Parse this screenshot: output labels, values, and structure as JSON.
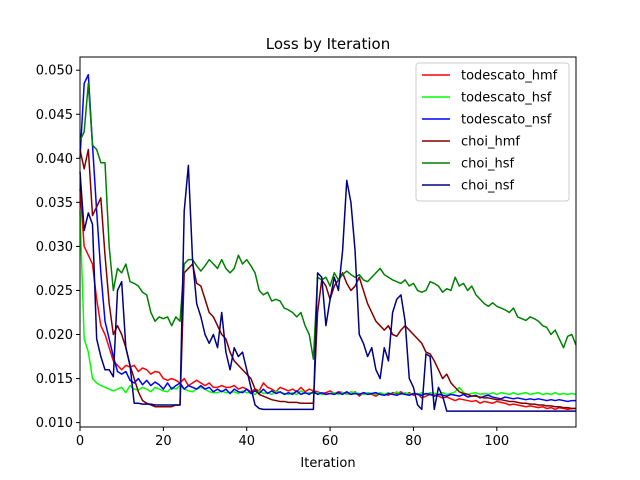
{
  "chart_data": {
    "type": "line",
    "title": "Loss by Iteration",
    "xlabel": "Iteration",
    "ylabel": "",
    "xlim": [
      0,
      119
    ],
    "ylim": [
      0.0095,
      0.0515
    ],
    "xticks": [
      0,
      20,
      40,
      60,
      80,
      100
    ],
    "xtick_labels": [
      "0",
      "20",
      "40",
      "60",
      "80",
      "100"
    ],
    "yticks": [
      0.01,
      0.015,
      0.02,
      0.025,
      0.03,
      0.035,
      0.04,
      0.045,
      0.05
    ],
    "ytick_labels": [
      "0.010",
      "0.015",
      "0.020",
      "0.025",
      "0.030",
      "0.035",
      "0.040",
      "0.045",
      "0.050"
    ],
    "grid": false,
    "legend_position": "top-right",
    "x_start": 0,
    "x_step": 1,
    "series": [
      {
        "name": "todescato_hmf",
        "color": "#ff0000",
        "values": [
          0.0365,
          0.03,
          0.029,
          0.028,
          0.024,
          0.021,
          0.02,
          0.0185,
          0.017,
          0.0165,
          0.016,
          0.0165,
          0.0163,
          0.0165,
          0.0158,
          0.0162,
          0.016,
          0.0155,
          0.0158,
          0.0157,
          0.015,
          0.0148,
          0.015,
          0.0148,
          0.0145,
          0.015,
          0.0142,
          0.0145,
          0.0148,
          0.0145,
          0.0142,
          0.0145,
          0.014,
          0.014,
          0.0142,
          0.014,
          0.014,
          0.0142,
          0.0138,
          0.014,
          0.0138,
          0.0135,
          0.0138,
          0.0136,
          0.0145,
          0.014,
          0.0138,
          0.0135,
          0.014,
          0.0138,
          0.0136,
          0.0138,
          0.0135,
          0.014,
          0.0135,
          0.0138,
          0.0136,
          0.0135,
          0.0133,
          0.0134,
          0.0136,
          0.0133,
          0.0135,
          0.0134,
          0.0133,
          0.0132,
          0.0135,
          0.013,
          0.0134,
          0.0133,
          0.0132,
          0.013,
          0.0133,
          0.0132,
          0.0131,
          0.0134,
          0.0133,
          0.0135,
          0.0132,
          0.0134,
          0.0131,
          0.0133,
          0.0128,
          0.013,
          0.0132,
          0.0131,
          0.013,
          0.0128,
          0.0129,
          0.0127,
          0.0125,
          0.0127,
          0.0126,
          0.0125,
          0.0124,
          0.0125,
          0.0122,
          0.0124,
          0.0123,
          0.0122,
          0.0124,
          0.0123,
          0.0122,
          0.012,
          0.0121,
          0.012,
          0.0119,
          0.0118,
          0.0119,
          0.0118,
          0.0117,
          0.0118,
          0.0116,
          0.0117,
          0.0115,
          0.0117,
          0.0116,
          0.0115,
          0.0116,
          0.0116
        ]
      },
      {
        "name": "todescato_hsf",
        "color": "#00ff00",
        "values": [
          0.034,
          0.0195,
          0.018,
          0.015,
          0.0145,
          0.0142,
          0.014,
          0.0138,
          0.0136,
          0.0138,
          0.014,
          0.0134,
          0.0142,
          0.0138,
          0.0137,
          0.014,
          0.0138,
          0.0135,
          0.014,
          0.0138,
          0.0136,
          0.0135,
          0.014,
          0.0138,
          0.0142,
          0.0138,
          0.0136,
          0.0135,
          0.0138,
          0.014,
          0.0138,
          0.0135,
          0.0134,
          0.0134,
          0.0136,
          0.0134,
          0.0134,
          0.0135,
          0.0133,
          0.0136,
          0.0134,
          0.0134,
          0.0132,
          0.0136,
          0.0133,
          0.0134,
          0.0132,
          0.0136,
          0.0134,
          0.0133,
          0.0132,
          0.0134,
          0.0132,
          0.0136,
          0.0133,
          0.0134,
          0.0133,
          0.0134,
          0.0132,
          0.0132,
          0.0133,
          0.0134,
          0.0132,
          0.0134,
          0.0132,
          0.0135,
          0.0134,
          0.0133,
          0.0132,
          0.0134,
          0.0133,
          0.0132,
          0.0134,
          0.0132,
          0.0134,
          0.0132,
          0.0135,
          0.0132,
          0.0134,
          0.0132,
          0.0133,
          0.0132,
          0.0134,
          0.0132,
          0.0134,
          0.0133,
          0.0132,
          0.0134,
          0.0132,
          0.0133,
          0.0135,
          0.014,
          0.0134,
          0.0132,
          0.0133,
          0.0134,
          0.0132,
          0.0133,
          0.0132,
          0.0134,
          0.0132,
          0.0134,
          0.0133,
          0.0132,
          0.0134,
          0.0132,
          0.0133,
          0.0134,
          0.0132,
          0.0133,
          0.0134,
          0.0132,
          0.0133,
          0.0132,
          0.0134,
          0.0132,
          0.0133,
          0.0132,
          0.0133,
          0.0132
        ]
      },
      {
        "name": "todescato_nsf",
        "color": "#0000ff",
        "values": [
          0.04,
          0.0485,
          0.0495,
          0.0415,
          0.034,
          0.027,
          0.0215,
          0.0195,
          0.0175,
          0.0158,
          0.0155,
          0.0158,
          0.0148,
          0.0145,
          0.015,
          0.0143,
          0.0148,
          0.0142,
          0.0146,
          0.0143,
          0.0138,
          0.0145,
          0.0138,
          0.0142,
          0.0145,
          0.0138,
          0.0142,
          0.014,
          0.0138,
          0.0142,
          0.0138,
          0.014,
          0.0135,
          0.0138,
          0.0135,
          0.0138,
          0.0133,
          0.0138,
          0.0135,
          0.0134,
          0.0138,
          0.0133,
          0.0136,
          0.0133,
          0.0138,
          0.0133,
          0.0136,
          0.0133,
          0.0135,
          0.0132,
          0.0134,
          0.0132,
          0.0136,
          0.0132,
          0.0134,
          0.0132,
          0.0135,
          0.0132,
          0.0134,
          0.0132,
          0.0133,
          0.0132,
          0.0134,
          0.0132,
          0.0135,
          0.0132,
          0.0133,
          0.0132,
          0.0134,
          0.0132,
          0.0133,
          0.0134,
          0.0132,
          0.0131,
          0.0133,
          0.0132,
          0.0131,
          0.0133,
          0.0132,
          0.0131,
          0.0133,
          0.0132,
          0.0131,
          0.0133,
          0.0132,
          0.013,
          0.0132,
          0.0131,
          0.013,
          0.0132,
          0.0131,
          0.013,
          0.0132,
          0.0129,
          0.013,
          0.0131,
          0.0128,
          0.013,
          0.0131,
          0.0129,
          0.0128,
          0.0127,
          0.0129,
          0.0128,
          0.0127,
          0.0128,
          0.0127,
          0.0126,
          0.0127,
          0.0126,
          0.0127,
          0.0126,
          0.0125,
          0.0126,
          0.0125,
          0.0126,
          0.0125,
          0.0124,
          0.0125,
          0.0125
        ]
      },
      {
        "name": "choi_hmf",
        "color": "#800000",
        "values": [
          0.041,
          0.0388,
          0.041,
          0.0335,
          0.0345,
          0.0355,
          0.029,
          0.0235,
          0.02,
          0.021,
          0.02,
          0.0185,
          0.0165,
          0.015,
          0.0135,
          0.0125,
          0.0122,
          0.012,
          0.0118,
          0.0118,
          0.0118,
          0.0118,
          0.0118,
          0.012,
          0.012,
          0.027,
          0.0275,
          0.028,
          0.0258,
          0.0255,
          0.024,
          0.0225,
          0.022,
          0.021,
          0.02,
          0.0195,
          0.018,
          0.017,
          0.0165,
          0.016,
          0.0155,
          0.015,
          0.0138,
          0.0132,
          0.013,
          0.0128,
          0.0126,
          0.0125,
          0.0124,
          0.0124,
          0.0123,
          0.0123,
          0.0123,
          0.0122,
          0.0122,
          0.0122,
          0.0122,
          0.0225,
          0.0262,
          0.0255,
          0.024,
          0.0255,
          0.0262,
          0.027,
          0.0258,
          0.025,
          0.0255,
          0.0265,
          0.025,
          0.0235,
          0.0225,
          0.0215,
          0.021,
          0.0205,
          0.021,
          0.02,
          0.0198,
          0.0205,
          0.021,
          0.0205,
          0.02,
          0.0195,
          0.019,
          0.018,
          0.0178,
          0.017,
          0.016,
          0.015,
          0.0155,
          0.0145,
          0.014,
          0.0135,
          0.0133,
          0.0132,
          0.013,
          0.013,
          0.0129,
          0.0128,
          0.0128,
          0.0127,
          0.0126,
          0.0126,
          0.0125,
          0.0124,
          0.0124,
          0.0123,
          0.0122,
          0.0122,
          0.0121,
          0.0121,
          0.012,
          0.012,
          0.0119,
          0.0119,
          0.0118,
          0.0118,
          0.0117,
          0.0117,
          0.0116,
          0.0116
        ]
      },
      {
        "name": "choi_hsf",
        "color": "#008000",
        "values": [
          0.042,
          0.043,
          0.0485,
          0.0415,
          0.041,
          0.0395,
          0.0395,
          0.03,
          0.025,
          0.0275,
          0.027,
          0.028,
          0.026,
          0.0258,
          0.0255,
          0.0248,
          0.0245,
          0.0225,
          0.0215,
          0.022,
          0.0218,
          0.022,
          0.021,
          0.022,
          0.0215,
          0.028,
          0.0285,
          0.0285,
          0.0278,
          0.0272,
          0.0278,
          0.0285,
          0.028,
          0.0275,
          0.0285,
          0.0275,
          0.027,
          0.0275,
          0.029,
          0.028,
          0.0285,
          0.0278,
          0.027,
          0.025,
          0.0245,
          0.0248,
          0.0238,
          0.024,
          0.0238,
          0.023,
          0.0228,
          0.0225,
          0.022,
          0.0225,
          0.021,
          0.02,
          0.0172,
          0.0265,
          0.0262,
          0.0265,
          0.0255,
          0.027,
          0.0262,
          0.0268,
          0.0272,
          0.0268,
          0.0265,
          0.0268,
          0.0262,
          0.026,
          0.0265,
          0.027,
          0.0275,
          0.0268,
          0.0265,
          0.0262,
          0.026,
          0.0258,
          0.0262,
          0.0255,
          0.0258,
          0.025,
          0.0248,
          0.025,
          0.026,
          0.0258,
          0.0255,
          0.0248,
          0.0252,
          0.025,
          0.0265,
          0.0255,
          0.0258,
          0.025,
          0.0255,
          0.0245,
          0.024,
          0.0235,
          0.0232,
          0.0236,
          0.0232,
          0.023,
          0.0228,
          0.0225,
          0.023,
          0.022,
          0.0218,
          0.0216,
          0.022,
          0.0218,
          0.0215,
          0.021,
          0.0208,
          0.02,
          0.0205,
          0.0195,
          0.0185,
          0.0198,
          0.02,
          0.0188
        ]
      },
      {
        "name": "choi_nsf",
        "color": "#000080",
        "values": [
          0.0385,
          0.0318,
          0.0338,
          0.0325,
          0.0195,
          0.0175,
          0.016,
          0.016,
          0.0152,
          0.025,
          0.026,
          0.0185,
          0.0165,
          0.0122,
          0.0122,
          0.0121,
          0.0121,
          0.0121,
          0.012,
          0.012,
          0.012,
          0.012,
          0.012,
          0.012,
          0.012,
          0.034,
          0.0392,
          0.0285,
          0.0235,
          0.022,
          0.02,
          0.019,
          0.02,
          0.0185,
          0.0225,
          0.018,
          0.016,
          0.0185,
          0.0175,
          0.018,
          0.016,
          0.014,
          0.012,
          0.0116,
          0.0115,
          0.0115,
          0.0115,
          0.0115,
          0.0115,
          0.0115,
          0.0115,
          0.0115,
          0.0115,
          0.0115,
          0.0115,
          0.0115,
          0.0115,
          0.027,
          0.0265,
          0.021,
          0.024,
          0.0265,
          0.025,
          0.0295,
          0.0375,
          0.035,
          0.0295,
          0.02,
          0.019,
          0.0175,
          0.0185,
          0.016,
          0.015,
          0.0185,
          0.017,
          0.0225,
          0.024,
          0.0245,
          0.0215,
          0.015,
          0.014,
          0.012,
          0.0115,
          0.0178,
          0.0175,
          0.0115,
          0.014,
          0.013,
          0.0113,
          0.0113,
          0.0113,
          0.0113,
          0.0113,
          0.0113,
          0.0113,
          0.0113,
          0.0113,
          0.0113,
          0.0113,
          0.0113,
          0.0113,
          0.0113,
          0.0113,
          0.0113,
          0.0113,
          0.0113,
          0.0113,
          0.0113,
          0.0113,
          0.0113,
          0.0113,
          0.0113,
          0.0113,
          0.0113,
          0.0113,
          0.0113,
          0.0113,
          0.0113,
          0.0113,
          0.0113
        ]
      }
    ]
  }
}
